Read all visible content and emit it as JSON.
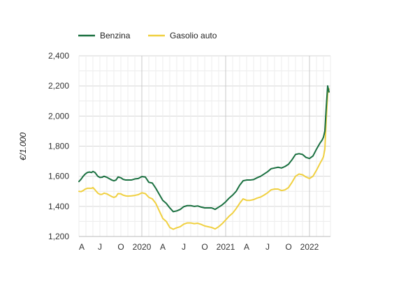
{
  "chart_data": {
    "type": "line",
    "title": "",
    "xlabel": "",
    "ylabel": "€/1.000",
    "ylim": [
      1200,
      2400
    ],
    "yticks": [
      1200,
      1400,
      1600,
      1800,
      2000,
      2200,
      2400
    ],
    "ytick_labels": [
      "1,200",
      "1,400",
      "1,600",
      "1,800",
      "2,000",
      "2,200",
      "2,400"
    ],
    "grid": true,
    "legend_position": "top-left",
    "xlim": [
      0,
      36
    ],
    "xticks": [
      {
        "pos": 0,
        "label": "A"
      },
      {
        "pos": 3,
        "label": "J"
      },
      {
        "pos": 6,
        "label": "O"
      },
      {
        "pos": 9,
        "label": "2020"
      },
      {
        "pos": 12,
        "label": "A"
      },
      {
        "pos": 15,
        "label": "J"
      },
      {
        "pos": 18,
        "label": "O"
      },
      {
        "pos": 21,
        "label": "2021"
      },
      {
        "pos": 24,
        "label": "A"
      },
      {
        "pos": 27,
        "label": "J"
      },
      {
        "pos": 30,
        "label": "O"
      },
      {
        "pos": 33,
        "label": "2022"
      }
    ],
    "major_xticks": [
      9,
      21,
      33
    ],
    "series": [
      {
        "name": "Benzina",
        "color": "#1a7040",
        "x": [
          0,
          0.3,
          0.6,
          0.9,
          1.2,
          1.5,
          1.8,
          2.0,
          2.3,
          2.7,
          3.0,
          3.3,
          3.6,
          4.0,
          4.3,
          4.7,
          5.0,
          5.3,
          5.6,
          6.0,
          6.3,
          6.7,
          7.0,
          7.5,
          8.0,
          8.5,
          9.0,
          9.5,
          10.0,
          10.5,
          11.0,
          11.5,
          12.0,
          12.5,
          13.0,
          13.5,
          14.0,
          14.5,
          15.0,
          15.5,
          16.0,
          16.5,
          17.0,
          17.5,
          18.0,
          18.5,
          19.0,
          19.5,
          20.0,
          20.5,
          21.0,
          21.5,
          22.0,
          22.5,
          23.0,
          23.5,
          24.0,
          24.5,
          25.0,
          25.5,
          26.0,
          26.5,
          27.0,
          27.5,
          28.0,
          28.5,
          29.0,
          29.5,
          30.0,
          30.5,
          31.0,
          31.5,
          32.0,
          32.5,
          33.0,
          33.5,
          34.0,
          34.5,
          34.8,
          35.0,
          35.2,
          35.4,
          35.6,
          35.8
        ],
        "values": [
          1565,
          1580,
          1600,
          1615,
          1625,
          1628,
          1625,
          1632,
          1625,
          1600,
          1592,
          1593,
          1600,
          1593,
          1585,
          1575,
          1570,
          1575,
          1595,
          1590,
          1580,
          1575,
          1575,
          1575,
          1582,
          1585,
          1598,
          1595,
          1560,
          1555,
          1520,
          1480,
          1440,
          1420,
          1390,
          1365,
          1370,
          1380,
          1398,
          1405,
          1405,
          1400,
          1403,
          1395,
          1390,
          1390,
          1390,
          1380,
          1395,
          1410,
          1430,
          1455,
          1475,
          1500,
          1540,
          1570,
          1575,
          1575,
          1578,
          1590,
          1600,
          1615,
          1630,
          1650,
          1655,
          1660,
          1655,
          1665,
          1680,
          1710,
          1745,
          1750,
          1745,
          1725,
          1718,
          1735,
          1780,
          1820,
          1840,
          1860,
          1900,
          2060,
          2200,
          2160
        ]
      },
      {
        "name": "Gasolio auto",
        "color": "#f0d040",
        "x": [
          0,
          0.3,
          0.6,
          0.9,
          1.2,
          1.5,
          1.8,
          2.0,
          2.3,
          2.7,
          3.0,
          3.3,
          3.6,
          4.0,
          4.3,
          4.7,
          5.0,
          5.3,
          5.6,
          6.0,
          6.3,
          6.7,
          7.0,
          7.5,
          8.0,
          8.5,
          9.0,
          9.5,
          10.0,
          10.5,
          11.0,
          11.5,
          12.0,
          12.5,
          13.0,
          13.5,
          14.0,
          14.5,
          15.0,
          15.5,
          16.0,
          16.5,
          17.0,
          17.5,
          18.0,
          18.5,
          19.0,
          19.5,
          20.0,
          20.5,
          21.0,
          21.5,
          22.0,
          22.5,
          23.0,
          23.5,
          24.0,
          24.5,
          25.0,
          25.5,
          26.0,
          26.5,
          27.0,
          27.5,
          28.0,
          28.5,
          29.0,
          29.5,
          30.0,
          30.5,
          31.0,
          31.5,
          32.0,
          32.5,
          33.0,
          33.5,
          34.0,
          34.5,
          34.8,
          35.0,
          35.2,
          35.4,
          35.6,
          35.8
        ],
        "values": [
          1500,
          1498,
          1505,
          1515,
          1520,
          1520,
          1520,
          1525,
          1510,
          1488,
          1480,
          1480,
          1488,
          1483,
          1475,
          1465,
          1460,
          1465,
          1485,
          1483,
          1475,
          1470,
          1468,
          1470,
          1473,
          1478,
          1490,
          1485,
          1460,
          1450,
          1420,
          1370,
          1320,
          1300,
          1260,
          1248,
          1258,
          1265,
          1282,
          1290,
          1290,
          1285,
          1288,
          1280,
          1270,
          1265,
          1260,
          1250,
          1265,
          1285,
          1310,
          1335,
          1355,
          1385,
          1420,
          1450,
          1440,
          1440,
          1445,
          1455,
          1462,
          1475,
          1490,
          1510,
          1515,
          1515,
          1505,
          1510,
          1525,
          1560,
          1600,
          1615,
          1610,
          1595,
          1585,
          1600,
          1640,
          1685,
          1710,
          1730,
          1780,
          1980,
          2150,
          2180
        ]
      }
    ]
  }
}
